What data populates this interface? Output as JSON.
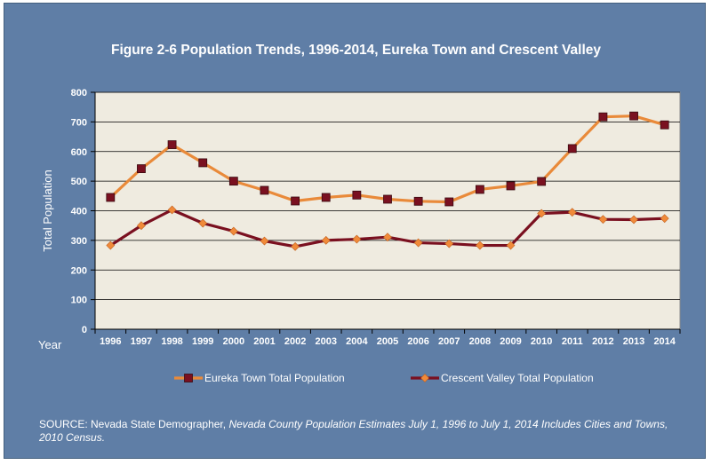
{
  "chart_data": {
    "type": "line",
    "title": "Figure 2-6 Population Trends, 1996-2014, Eureka Town and Crescent Valley",
    "xlabel": "Year",
    "ylabel": "Total Population",
    "ylim": [
      0,
      800
    ],
    "yticks": [
      "0",
      "100",
      "200",
      "300",
      "400",
      "500",
      "600",
      "700",
      "800"
    ],
    "categories": [
      "1996",
      "1997",
      "1998",
      "1999",
      "2000",
      "2001",
      "2002",
      "2003",
      "2004",
      "2005",
      "2006",
      "2007",
      "2008",
      "2009",
      "2010",
      "2011",
      "2012",
      "2013",
      "2014"
    ],
    "grid": true,
    "legend_position": "bottom",
    "series": [
      {
        "name": "Eureka Town Total Population",
        "line_color": "#e98a3a",
        "marker_color": "#7a1020",
        "marker": "square",
        "values": [
          445,
          542,
          623,
          562,
          500,
          469,
          433,
          445,
          453,
          439,
          432,
          430,
          472,
          484,
          499,
          610,
          717,
          720,
          690
        ]
      },
      {
        "name": "Crescent Valley Total Population",
        "line_color": "#7a1020",
        "marker_color": "#f08a3a",
        "marker": "diamond",
        "values": [
          283,
          350,
          403,
          358,
          331,
          298,
          279,
          300,
          304,
          311,
          292,
          289,
          283,
          283,
          391,
          395,
          371,
          370,
          374
        ]
      }
    ]
  },
  "source": {
    "prefix": "SOURCE: Nevada State Demographer, ",
    "italic": "Nevada County Population Estimates July 1, 1996 to July 1, 2014 Includes Cities and Towns, 2010 Census."
  },
  "colors": {
    "frame": "#5f7ea6",
    "plot_area": "#efebe0",
    "grid": "#000000"
  }
}
